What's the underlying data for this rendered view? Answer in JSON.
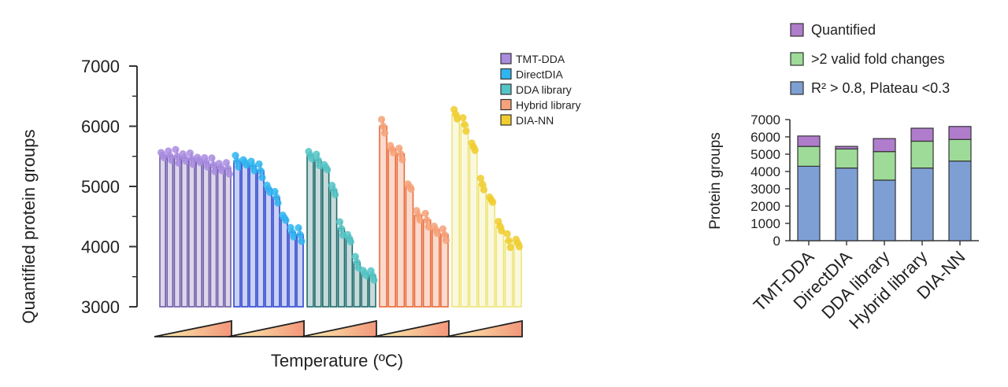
{
  "chart_data": [
    {
      "type": "bar",
      "ylabel": "Quantified protein groups",
      "xlabel": "Temperature (ºC)",
      "ylim": [
        3000,
        7000
      ],
      "yticks": [
        3000,
        4000,
        5000,
        6000,
        7000
      ],
      "legend_position": "top-right",
      "series": [
        {
          "name": "TMT-DDA",
          "color": "#6E5BA8",
          "dot_color": "#A98CE0",
          "values": [
            5520,
            5510,
            5500,
            5480,
            5460,
            5440,
            5400,
            5360,
            5320,
            5300
          ]
        },
        {
          "name": "DirectDIA",
          "color": "#2E46CF",
          "dot_color": "#2FB6F0",
          "values": [
            5420,
            5400,
            5340,
            5260,
            4960,
            4820,
            4480,
            4240,
            4200
          ]
        },
        {
          "name": "DDA library",
          "color": "#1E6B6C",
          "dot_color": "#55C4C6",
          "values": [
            5520,
            5440,
            5320,
            4940,
            4300,
            4140,
            3740,
            3560,
            3520
          ]
        },
        {
          "name": "Hybrid library",
          "color": "#E86A38",
          "dot_color": "#F6A27A",
          "values": [
            6000,
            5620,
            5540,
            5000,
            4520,
            4440,
            4280,
            4200
          ]
        },
        {
          "name": "DIA-NN",
          "color": "#EDE57A",
          "dot_color": "#F0CC2E",
          "values": [
            6200,
            6030,
            5660,
            5040,
            4780,
            4340,
            4100,
            4060
          ]
        }
      ],
      "xaxis_note": "temperature gradient per method (ramp triangles)"
    },
    {
      "type": "bar",
      "stacked": true,
      "ylabel": "Protein groups",
      "ylim": [
        0,
        7000
      ],
      "yticks": [
        0,
        1000,
        2000,
        3000,
        4000,
        5000,
        6000,
        7000
      ],
      "categories": [
        "TMT-DDA",
        "DirectDIA",
        "DDA library",
        "Hybrid library",
        "DIA-NN"
      ],
      "legend_position": "top",
      "series": [
        {
          "name": "R² > 0.8, Plateau <0.3",
          "color": "#7E9FD4",
          "values": [
            4300,
            4200,
            3500,
            4200,
            4600
          ]
        },
        {
          "name": ">2 valid fold changes",
          "color": "#9EDB98",
          "values": [
            1150,
            1100,
            1650,
            1550,
            1250
          ]
        },
        {
          "name": "Quantified",
          "color": "#B07CCC",
          "values": [
            600,
            150,
            750,
            750,
            750
          ]
        }
      ],
      "legend_order": [
        "Quantified",
        ">2 valid fold changes",
        "R² > 0.8, Plateau <0.3"
      ]
    }
  ]
}
